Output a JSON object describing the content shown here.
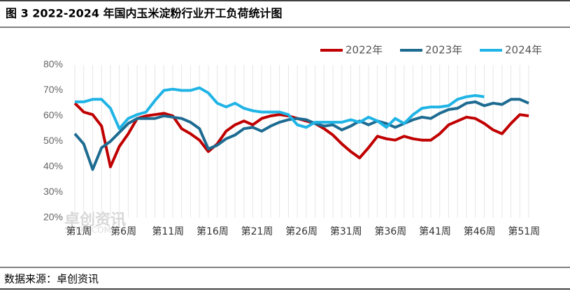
{
  "chart_data": {
    "type": "line",
    "title": "图 3 2022-2024 年国内玉米淀粉行业开工负荷统计图",
    "source": "数据来源：卓创资讯",
    "watermark": "卓创资讯",
    "watermark_sub": "SCI99.COM",
    "categories": [
      "第1周",
      null,
      null,
      null,
      null,
      "第6周",
      null,
      null,
      null,
      null,
      "第11周",
      null,
      null,
      null,
      null,
      "第16周",
      null,
      null,
      null,
      null,
      "第21周",
      null,
      null,
      null,
      null,
      "第26周",
      null,
      null,
      null,
      null,
      "第31周",
      null,
      null,
      null,
      null,
      "第36周",
      null,
      null,
      null,
      null,
      "第41周",
      null,
      null,
      null,
      null,
      "第46周",
      null,
      null,
      null,
      null,
      "第51周",
      null
    ],
    "ylim": [
      20,
      80
    ],
    "yticks": [
      {
        "value": 20,
        "label": "20%"
      },
      {
        "value": 30,
        "label": "30%"
      },
      {
        "value": 40,
        "label": "40%"
      },
      {
        "value": 50,
        "label": "50%"
      },
      {
        "value": 60,
        "label": "60%"
      },
      {
        "value": 70,
        "label": "70%"
      },
      {
        "value": 80,
        "label": "80%"
      }
    ],
    "grid": "x",
    "legend": "top-right",
    "series": [
      {
        "name": "2022年",
        "color": "#c00000",
        "values": [
          65,
          61.5,
          60.5,
          56,
          40,
          48,
          53,
          59,
          60,
          60.5,
          61,
          60,
          55,
          53,
          50.5,
          46,
          49,
          54,
          56.5,
          58,
          56.5,
          59,
          60,
          60.5,
          60,
          59,
          58,
          57,
          55,
          52.5,
          49,
          46,
          43.5,
          47.5,
          52,
          51,
          50.5,
          52,
          51,
          50.5,
          50.5,
          53,
          56.5,
          58,
          59.5,
          59,
          57,
          54.5,
          53,
          57,
          60.5,
          60
        ]
      },
      {
        "name": "2023年",
        "color": "#1d6b91",
        "values": [
          53,
          49,
          39,
          47.5,
          50,
          53.5,
          57,
          59,
          59,
          59,
          60,
          59.5,
          59,
          57.5,
          55,
          47,
          48.5,
          51,
          52.5,
          55,
          55.5,
          54,
          56,
          57.5,
          58.5,
          59,
          58.5,
          57,
          56,
          56.5,
          54.5,
          56,
          58,
          56.5,
          58,
          57,
          55.5,
          57,
          58.5,
          59.5,
          59,
          61,
          62.5,
          63,
          65,
          65.5,
          64,
          65,
          64.5,
          66.5,
          66.5,
          65
        ]
      },
      {
        "name": "2024年",
        "color": "#1fb4e6",
        "values": [
          65.5,
          65.5,
          66.5,
          66.5,
          63,
          55,
          59,
          60.5,
          61.5,
          66,
          70,
          70.5,
          70,
          70,
          71,
          69,
          65,
          63.5,
          65,
          63,
          62,
          61.5,
          61.5,
          61.5,
          60.5,
          56.5,
          55.5,
          57.5,
          57.5,
          57.5,
          57.5,
          58.5,
          57.5,
          59.5,
          58,
          55.5,
          59,
          57,
          60.5,
          63,
          63.5,
          63.5,
          64,
          66.5,
          67.5,
          68,
          67.5,
          null,
          null,
          null,
          null,
          null
        ]
      }
    ]
  }
}
